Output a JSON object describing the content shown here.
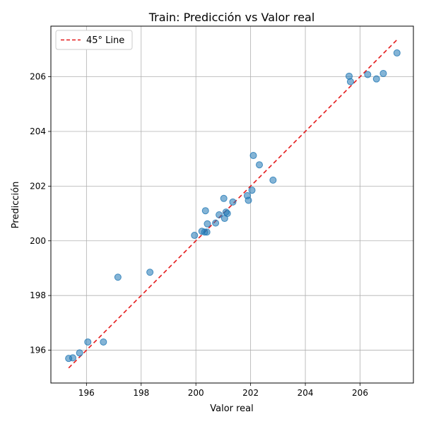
{
  "chart_data": {
    "type": "scatter",
    "title": "Train: Predicción vs Valor real",
    "xlabel": "Valor real",
    "ylabel": "Predicción",
    "xlim": [
      194.7,
      207.95
    ],
    "ylim": [
      194.8,
      207.85
    ],
    "x_ticks": [
      196,
      198,
      200,
      202,
      204,
      206
    ],
    "y_ticks": [
      196,
      198,
      200,
      202,
      204,
      206
    ],
    "grid": true,
    "legend": {
      "position": "top-left",
      "entries": [
        {
          "label": "45° Line",
          "style": "dashed",
          "color": "#e41a1c"
        }
      ]
    },
    "reference_line": {
      "name": "45° Line",
      "from": [
        195.35,
        195.35
      ],
      "to": [
        207.35,
        207.35
      ]
    },
    "point_color": "#1f77b4",
    "points": [
      [
        195.35,
        195.7
      ],
      [
        195.5,
        195.72
      ],
      [
        195.75,
        195.9
      ],
      [
        196.05,
        196.3
      ],
      [
        196.62,
        196.3
      ],
      [
        197.15,
        198.67
      ],
      [
        198.32,
        198.85
      ],
      [
        199.95,
        200.2
      ],
      [
        200.22,
        200.35
      ],
      [
        200.32,
        200.32
      ],
      [
        200.4,
        200.32
      ],
      [
        200.42,
        200.62
      ],
      [
        200.35,
        201.1
      ],
      [
        200.72,
        200.65
      ],
      [
        200.85,
        200.95
      ],
      [
        201.05,
        200.82
      ],
      [
        201.1,
        201.05
      ],
      [
        201.02,
        201.55
      ],
      [
        201.15,
        201.0
      ],
      [
        201.35,
        201.42
      ],
      [
        201.88,
        201.65
      ],
      [
        201.92,
        201.48
      ],
      [
        202.05,
        201.85
      ],
      [
        202.1,
        203.12
      ],
      [
        202.32,
        202.78
      ],
      [
        202.82,
        202.22
      ],
      [
        205.6,
        206.02
      ],
      [
        205.65,
        205.82
      ],
      [
        206.28,
        206.08
      ],
      [
        206.6,
        205.92
      ],
      [
        206.85,
        206.12
      ],
      [
        207.35,
        206.87
      ]
    ]
  }
}
